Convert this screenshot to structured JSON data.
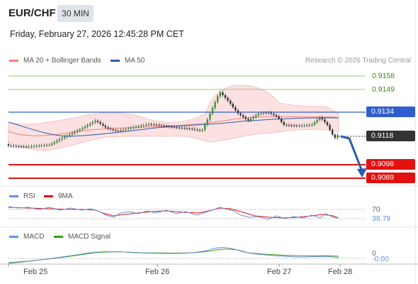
{
  "header": {
    "symbol": "EUR/CHF",
    "timeframe": "30 MIN",
    "datetime": "Friday, February 27, 2026 12:45:28 PM CET"
  },
  "legend": {
    "bollinger": {
      "label": "MA 20 + Bollinger Bands",
      "color": "#f28080"
    },
    "ma50": {
      "label": "MA 50",
      "color": "#2a5ba8"
    }
  },
  "copyright": "Research © 2026 Trading Central",
  "levels": {
    "r2": "0.9158",
    "r1": "0.9149",
    "pivot": "0.9134",
    "last": "0.9118",
    "s1": "0.9098",
    "s2": "0.9089",
    "resistance_color": "#9acd6a",
    "pivot_color": "#2f5fcf",
    "support_color": "#e21010",
    "last_color": "#333333"
  },
  "rsi_panel": {
    "rsi_label": "RSI",
    "ma_label": "9MA",
    "rsi_color": "#6a8ee0",
    "ma_color": "#e21010",
    "level_70": "70",
    "value": "38.79"
  },
  "macd_panel": {
    "macd_label": "MACD",
    "signal_label": "MACD Signal",
    "macd_color": "#6a8ee0",
    "signal_color": "#3aa010",
    "level_0": "0",
    "value": "-0.00"
  },
  "xaxis": {
    "labels": [
      "Feb 25",
      "Feb 26",
      "Feb 27",
      "Feb 28"
    ]
  },
  "chart_data": {
    "type": "candlestick",
    "x": [
      "Feb 25",
      "Feb 26",
      "Feb 27",
      "Feb 28"
    ],
    "price_levels": [
      0.9158,
      0.9149,
      0.9134,
      0.9118,
      0.9098,
      0.9089
    ],
    "projection": {
      "from": 0.9118,
      "to": 0.9089,
      "direction": "down"
    },
    "rsi": {
      "level": 70,
      "last": 38.79
    },
    "macd": {
      "level": 0,
      "last": -0.0
    }
  }
}
